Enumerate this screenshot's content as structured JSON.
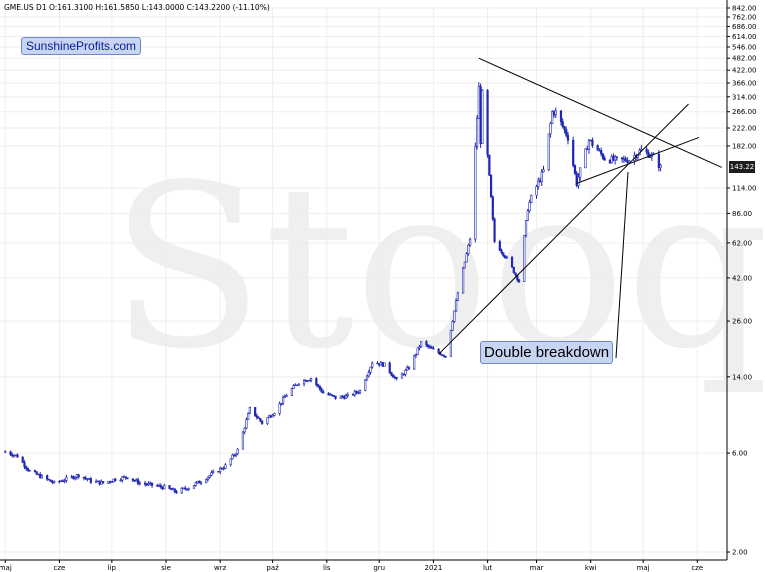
{
  "header": {
    "text": "GME.US  D1  O:161.3100  H:161.5850  L:143.0000  C:143.2200  (-11.10%)"
  },
  "brand": {
    "label": "SunshineProfits.com"
  },
  "watermark": {
    "text": "Stooq"
  },
  "annotation": {
    "label": "Double breakdown"
  },
  "last_price_label": "143.22",
  "colors": {
    "candles": "#1f27b4",
    "lines": "#000000",
    "label_bg": "#c7d5f3",
    "grid": "#eeeeee"
  },
  "chart_data": {
    "type": "candlestick",
    "symbol": "GME.US",
    "timeframe": "D1",
    "last": {
      "open": 161.31,
      "high": 161.585,
      "low": 143.0,
      "close": 143.22,
      "change_pct": -11.1
    },
    "y_scale": "log",
    "ylim": [
      2.0,
      842.0
    ],
    "y_ticks": [
      842.0,
      762.0,
      686.0,
      614.0,
      546.0,
      482.0,
      422.0,
      366.0,
      314.0,
      266.0,
      222.0,
      182.0,
      143.22,
      114.0,
      86.0,
      62.0,
      42.0,
      26.0,
      14.0,
      6.0,
      2.0
    ],
    "y_tick_labels": [
      "842.00",
      "762.00",
      "686.00",
      "614.00",
      "546.00",
      "482.00",
      "422.00",
      "366.00",
      "314.00",
      "266.00",
      "222.00",
      "182.00",
      "143.22",
      "114.00",
      "86.00",
      "62.00",
      "42.00",
      "26.00",
      "14.00",
      "6.00",
      "2.00"
    ],
    "x_tick_labels": [
      "maj",
      "cze",
      "lip",
      "sie",
      "wrz",
      "paź",
      "lis",
      "gru",
      "2021",
      "lut",
      "mar",
      "kwi",
      "maj",
      "cze"
    ],
    "x_tick_dates": [
      "2020-05-01",
      "2020-06-01",
      "2020-07-01",
      "2020-08-01",
      "2020-09-01",
      "2020-10-01",
      "2020-11-01",
      "2020-12-01",
      "2021-01-01",
      "2021-02-01",
      "2021-03-01",
      "2021-04-01",
      "2021-05-01",
      "2021-06-01"
    ],
    "xlim": [
      "2020-04-28",
      "2021-06-18"
    ],
    "closes": [
      {
        "date": "2020-05-01",
        "close": 6.1
      },
      {
        "date": "2020-05-08",
        "close": 5.8
      },
      {
        "date": "2020-05-15",
        "close": 4.9
      },
      {
        "date": "2020-05-22",
        "close": 4.6
      },
      {
        "date": "2020-05-29",
        "close": 4.3
      },
      {
        "date": "2020-06-05",
        "close": 4.5
      },
      {
        "date": "2020-06-12",
        "close": 4.7
      },
      {
        "date": "2020-06-19",
        "close": 4.4
      },
      {
        "date": "2020-06-26",
        "close": 4.3
      },
      {
        "date": "2020-07-03",
        "close": 4.5
      },
      {
        "date": "2020-07-10",
        "close": 4.6
      },
      {
        "date": "2020-07-17",
        "close": 4.3
      },
      {
        "date": "2020-07-24",
        "close": 4.2
      },
      {
        "date": "2020-07-31",
        "close": 4.1
      },
      {
        "date": "2020-08-07",
        "close": 3.9
      },
      {
        "date": "2020-08-14",
        "close": 4.1
      },
      {
        "date": "2020-08-21",
        "close": 4.4
      },
      {
        "date": "2020-08-28",
        "close": 4.8
      },
      {
        "date": "2020-09-04",
        "close": 5.2
      },
      {
        "date": "2020-09-11",
        "close": 6.2
      },
      {
        "date": "2020-09-18",
        "close": 9.8
      },
      {
        "date": "2020-09-25",
        "close": 8.4
      },
      {
        "date": "2020-10-02",
        "close": 9.5
      },
      {
        "date": "2020-10-09",
        "close": 11.5
      },
      {
        "date": "2020-10-16",
        "close": 13.2
      },
      {
        "date": "2020-10-23",
        "close": 13.8
      },
      {
        "date": "2020-10-30",
        "close": 11.7
      },
      {
        "date": "2020-11-06",
        "close": 11.1
      },
      {
        "date": "2020-11-13",
        "close": 11.3
      },
      {
        "date": "2020-11-20",
        "close": 12.0
      },
      {
        "date": "2020-11-27",
        "close": 16.5
      },
      {
        "date": "2020-12-04",
        "close": 16.0
      },
      {
        "date": "2020-12-11",
        "close": 13.5
      },
      {
        "date": "2020-12-18",
        "close": 15.5
      },
      {
        "date": "2020-12-25",
        "close": 20.5
      },
      {
        "date": "2021-01-01",
        "close": 18.8
      },
      {
        "date": "2021-01-08",
        "close": 17.7
      },
      {
        "date": "2021-01-15",
        "close": 35.5
      },
      {
        "date": "2021-01-22",
        "close": 65.0
      },
      {
        "date": "2021-01-27",
        "close": 347.0
      },
      {
        "date": "2021-01-28",
        "close": 193.0
      },
      {
        "date": "2021-01-29",
        "close": 325.0
      },
      {
        "date": "2021-02-05",
        "close": 63.0
      },
      {
        "date": "2021-02-12",
        "close": 52.0
      },
      {
        "date": "2021-02-19",
        "close": 40.6
      },
      {
        "date": "2021-02-24",
        "close": 91.7
      },
      {
        "date": "2021-02-26",
        "close": 101.7
      },
      {
        "date": "2021-03-05",
        "close": 137.7
      },
      {
        "date": "2021-03-10",
        "close": 265.0
      },
      {
        "date": "2021-03-12",
        "close": 264.5
      },
      {
        "date": "2021-03-19",
        "close": 200.3
      },
      {
        "date": "2021-03-24",
        "close": 120.3
      },
      {
        "date": "2021-03-31",
        "close": 194.5
      },
      {
        "date": "2021-04-09",
        "close": 158.4
      },
      {
        "date": "2021-04-16",
        "close": 154.7
      },
      {
        "date": "2021-04-23",
        "close": 156.4
      },
      {
        "date": "2021-04-30",
        "close": 173.6
      },
      {
        "date": "2021-05-07",
        "close": 161.3
      },
      {
        "date": "2021-05-11",
        "close": 143.22
      }
    ],
    "trendlines": [
      {
        "name": "",
        "from": {
          "date": "2021-01-27",
          "value": 482.0
        },
        "to": {
          "date": "2021-06-15",
          "value": 143.22
        }
      },
      {
        "name": "",
        "from": {
          "date": "2021-03-24",
          "value": 120.0
        },
        "to": {
          "date": "2021-06-02",
          "value": 200.0
        }
      },
      {
        "name": "",
        "from": {
          "date": "2021-01-04",
          "value": 18.0
        },
        "to": {
          "date": "2021-05-27",
          "value": 290.0
        }
      }
    ]
  }
}
